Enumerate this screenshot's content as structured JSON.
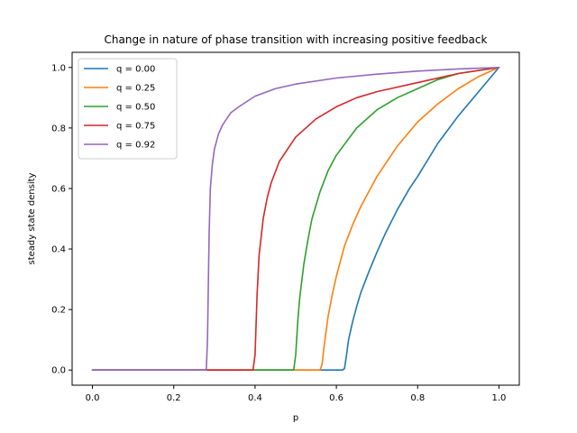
{
  "chart_data": {
    "type": "line",
    "title": "Change in nature of phase transition with increasing positive feedback",
    "xlabel": "p",
    "ylabel": "steady state density",
    "xlim": [
      -0.05,
      1.05
    ],
    "ylim": [
      -0.05,
      1.05
    ],
    "x_ticks": [
      0.0,
      0.2,
      0.4,
      0.6,
      0.8,
      1.0
    ],
    "y_ticks": [
      0.0,
      0.2,
      0.4,
      0.6,
      0.8,
      1.0
    ],
    "x_tick_labels": [
      "0.0",
      "0.2",
      "0.4",
      "0.6",
      "0.8",
      "1.0"
    ],
    "y_tick_labels": [
      "0.0",
      "0.2",
      "0.4",
      "0.6",
      "0.8",
      "1.0"
    ],
    "grid": false,
    "legend_position": "top-left",
    "series": [
      {
        "name": "q = 0.00",
        "color": "#1f77b4",
        "x": [
          0.0,
          0.615,
          0.62,
          0.625,
          0.63,
          0.64,
          0.65,
          0.66,
          0.68,
          0.7,
          0.72,
          0.75,
          0.78,
          0.8,
          0.85,
          0.9,
          0.95,
          1.0
        ],
        "y": [
          0.0,
          0.0,
          0.005,
          0.05,
          0.1,
          0.16,
          0.21,
          0.255,
          0.325,
          0.39,
          0.45,
          0.53,
          0.6,
          0.64,
          0.75,
          0.84,
          0.92,
          1.0
        ]
      },
      {
        "name": "q = 0.25",
        "color": "#ff7f0e",
        "x": [
          0.0,
          0.56,
          0.565,
          0.57,
          0.58,
          0.59,
          0.6,
          0.62,
          0.64,
          0.66,
          0.7,
          0.75,
          0.8,
          0.85,
          0.9,
          0.95,
          1.0
        ],
        "y": [
          0.0,
          0.0,
          0.02,
          0.08,
          0.18,
          0.25,
          0.31,
          0.41,
          0.48,
          0.54,
          0.64,
          0.74,
          0.82,
          0.88,
          0.93,
          0.97,
          1.0
        ]
      },
      {
        "name": "q = 0.50",
        "color": "#2ca02c",
        "x": [
          0.0,
          0.495,
          0.5,
          0.505,
          0.51,
          0.52,
          0.53,
          0.54,
          0.56,
          0.58,
          0.6,
          0.65,
          0.7,
          0.75,
          0.8,
          0.85,
          0.9,
          0.95,
          1.0
        ],
        "y": [
          0.0,
          0.0,
          0.05,
          0.16,
          0.24,
          0.35,
          0.43,
          0.5,
          0.59,
          0.66,
          0.71,
          0.8,
          0.86,
          0.9,
          0.93,
          0.96,
          0.98,
          0.99,
          1.0
        ]
      },
      {
        "name": "q = 0.75",
        "color": "#d62728",
        "x": [
          0.0,
          0.395,
          0.4,
          0.405,
          0.41,
          0.42,
          0.43,
          0.44,
          0.46,
          0.48,
          0.5,
          0.55,
          0.6,
          0.65,
          0.7,
          0.8,
          0.9,
          1.0
        ],
        "y": [
          0.0,
          0.0,
          0.05,
          0.25,
          0.38,
          0.5,
          0.57,
          0.62,
          0.69,
          0.73,
          0.77,
          0.83,
          0.87,
          0.9,
          0.92,
          0.95,
          0.98,
          1.0
        ]
      },
      {
        "name": "q = 0.92",
        "color": "#9467bd",
        "x": [
          0.0,
          0.28,
          0.283,
          0.287,
          0.29,
          0.295,
          0.3,
          0.31,
          0.32,
          0.34,
          0.36,
          0.4,
          0.45,
          0.5,
          0.6,
          0.7,
          0.8,
          0.9,
          1.0
        ],
        "y": [
          0.0,
          0.0,
          0.1,
          0.45,
          0.6,
          0.68,
          0.73,
          0.78,
          0.81,
          0.85,
          0.87,
          0.905,
          0.93,
          0.945,
          0.965,
          0.978,
          0.988,
          0.995,
          1.0
        ]
      }
    ]
  }
}
